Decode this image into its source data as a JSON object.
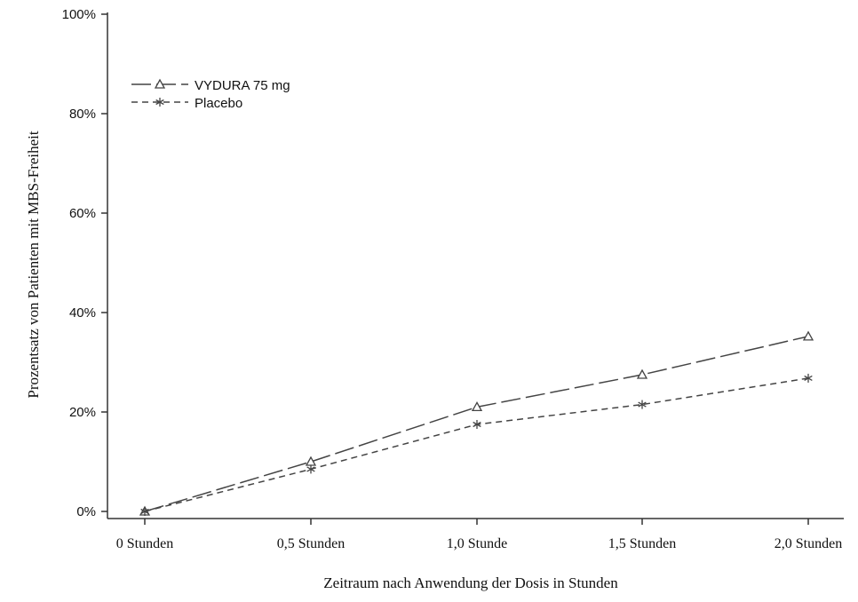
{
  "chart_data": {
    "type": "line",
    "title": "",
    "xlabel": "Zeitraum nach Anwendung der Dosis in Stunden",
    "ylabel": "Prozentsatz von Patienten mit MBS-Freiheit",
    "categories": [
      "0 Stunden",
      "0,5 Stunden",
      "1,0 Stunde",
      "1,5 Stunden",
      "2,0 Stunden"
    ],
    "y_ticks": [
      "0%",
      "20%",
      "40%",
      "60%",
      "80%",
      "100%"
    ],
    "ylim": [
      0,
      100
    ],
    "grid": false,
    "legend_position": "top-left",
    "series": [
      {
        "name": "VYDURA 75 mg",
        "marker": "triangle",
        "line_style": "long-dash",
        "color": "#444444",
        "values": [
          0,
          10,
          21,
          27.5,
          35.2
        ]
      },
      {
        "name": "Placebo",
        "marker": "asterisk",
        "line_style": "short-dash",
        "color": "#444444",
        "values": [
          0,
          8.5,
          17.5,
          21.5,
          26.8
        ]
      }
    ]
  }
}
